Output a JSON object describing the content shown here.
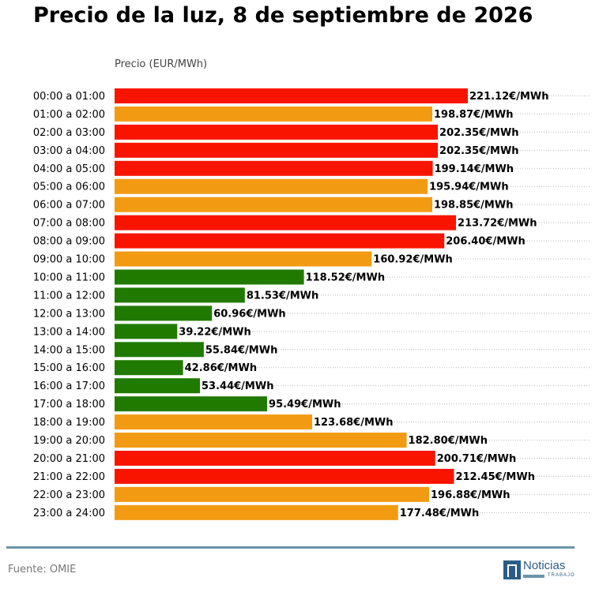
{
  "header": {
    "title": "Precio de la luz, 8 de septiembre de 2026"
  },
  "chart_data": {
    "type": "bar",
    "orientation": "horizontal",
    "title": "Precio de la luz, 8 de septiembre de 2026",
    "ylabel": "Precio (EUR/MWh)",
    "value_suffix": "€/MWh",
    "xlim": [
      0,
      270
    ],
    "grid": "dotted horizontal",
    "categories": [
      "00:00 a 01:00",
      "01:00 a 02:00",
      "02:00 a 03:00",
      "03:00 a 04:00",
      "04:00 a 05:00",
      "05:00 a 06:00",
      "06:00 a 07:00",
      "07:00 a 08:00",
      "08:00 a 09:00",
      "09:00 a 10:00",
      "10:00 a 11:00",
      "11:00 a 12:00",
      "12:00 a 13:00",
      "13:00 a 14:00",
      "14:00 a 15:00",
      "15:00 a 16:00",
      "16:00 a 17:00",
      "17:00 a 18:00",
      "18:00 a 19:00",
      "19:00 a 20:00",
      "20:00 a 21:00",
      "21:00 a 22:00",
      "22:00 a 23:00",
      "23:00 a 24:00"
    ],
    "values": [
      221.12,
      198.87,
      202.35,
      202.35,
      199.14,
      195.94,
      198.85,
      213.72,
      206.4,
      160.92,
      118.52,
      81.53,
      60.96,
      39.22,
      55.84,
      42.86,
      53.44,
      95.49,
      123.68,
      182.8,
      200.71,
      212.45,
      196.88,
      177.48
    ],
    "bar_levels": [
      "high",
      "medium",
      "high",
      "high",
      "high",
      "medium",
      "medium",
      "high",
      "high",
      "medium",
      "low",
      "low",
      "low",
      "low",
      "low",
      "low",
      "low",
      "low",
      "medium",
      "medium",
      "high",
      "high",
      "medium",
      "medium"
    ],
    "level_colors": {
      "high": "#f91400",
      "medium": "#f29b12",
      "low": "#217a00"
    }
  },
  "footer": {
    "source": "Fuente: OMIE"
  },
  "logo": {
    "text": "Noticias",
    "subtext": "TRABAJO"
  }
}
